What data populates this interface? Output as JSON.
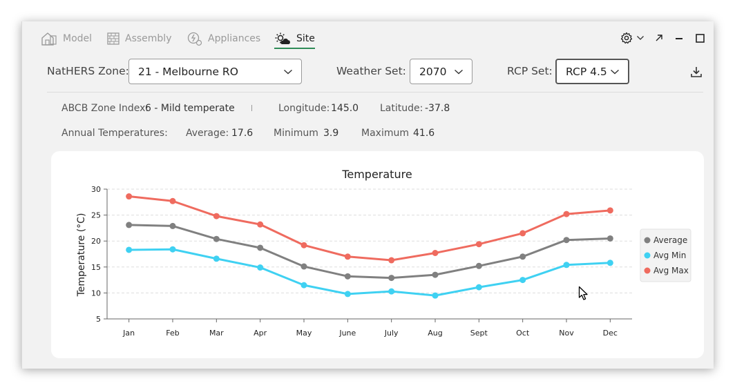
{
  "tabs": [
    {
      "label": "Model",
      "icon": "house-icon"
    },
    {
      "label": "Assembly",
      "icon": "brick-wall-icon"
    },
    {
      "label": "Appliances",
      "icon": "appliance-icon"
    },
    {
      "label": "Site",
      "icon": "sun-cloud-icon"
    }
  ],
  "active_tab": "Site",
  "controls": {
    "nathers_label": "NatHERS Zone:",
    "nathers_value": "21 - Melbourne RO",
    "weather_label": "Weather Set:",
    "weather_value": "2070",
    "rcp_label": "RCP Set:",
    "rcp_value": "RCP 4.5"
  },
  "info": {
    "abcb_label": "ABCB Zone Index:",
    "abcb_value": "6 - Mild temperate",
    "longitude_label": "Longitude:",
    "longitude_value": "145.0",
    "latitude_label": "Latitude:",
    "latitude_value": "-37.8",
    "annual_label": "Annual Temperatures:",
    "average_label": "Average:",
    "average_value": "17.6",
    "minimum_label": "Minimum",
    "minimum_value": "3.9",
    "maximum_label": "Maximum",
    "maximum_value": "41.6"
  },
  "chart_data": {
    "type": "line",
    "title": "Temperature",
    "xlabel": "",
    "ylabel": "Temperature (°C)",
    "categories": [
      "Jan",
      "Feb",
      "Mar",
      "Apr",
      "May",
      "June",
      "July",
      "Aug",
      "Sept",
      "Oct",
      "Nov",
      "Dec"
    ],
    "ylim": [
      5,
      30
    ],
    "yticks": [
      5,
      10,
      15,
      20,
      25,
      30
    ],
    "grid": true,
    "legend_position": "right",
    "series": [
      {
        "name": "Average",
        "color": "#808080",
        "values": [
          23.1,
          22.9,
          20.4,
          18.7,
          15.1,
          13.2,
          12.9,
          13.5,
          15.2,
          17.0,
          20.2,
          20.5
        ]
      },
      {
        "name": "Avg Min",
        "color": "#3fd1f2",
        "values": [
          18.3,
          18.4,
          16.6,
          14.9,
          11.5,
          9.8,
          10.3,
          9.5,
          11.1,
          12.5,
          15.4,
          15.8
        ]
      },
      {
        "name": "Avg Max",
        "color": "#ef6b5f",
        "values": [
          28.6,
          27.7,
          24.8,
          23.2,
          19.2,
          17.0,
          16.3,
          17.7,
          19.4,
          21.5,
          25.2,
          25.9
        ]
      }
    ]
  }
}
